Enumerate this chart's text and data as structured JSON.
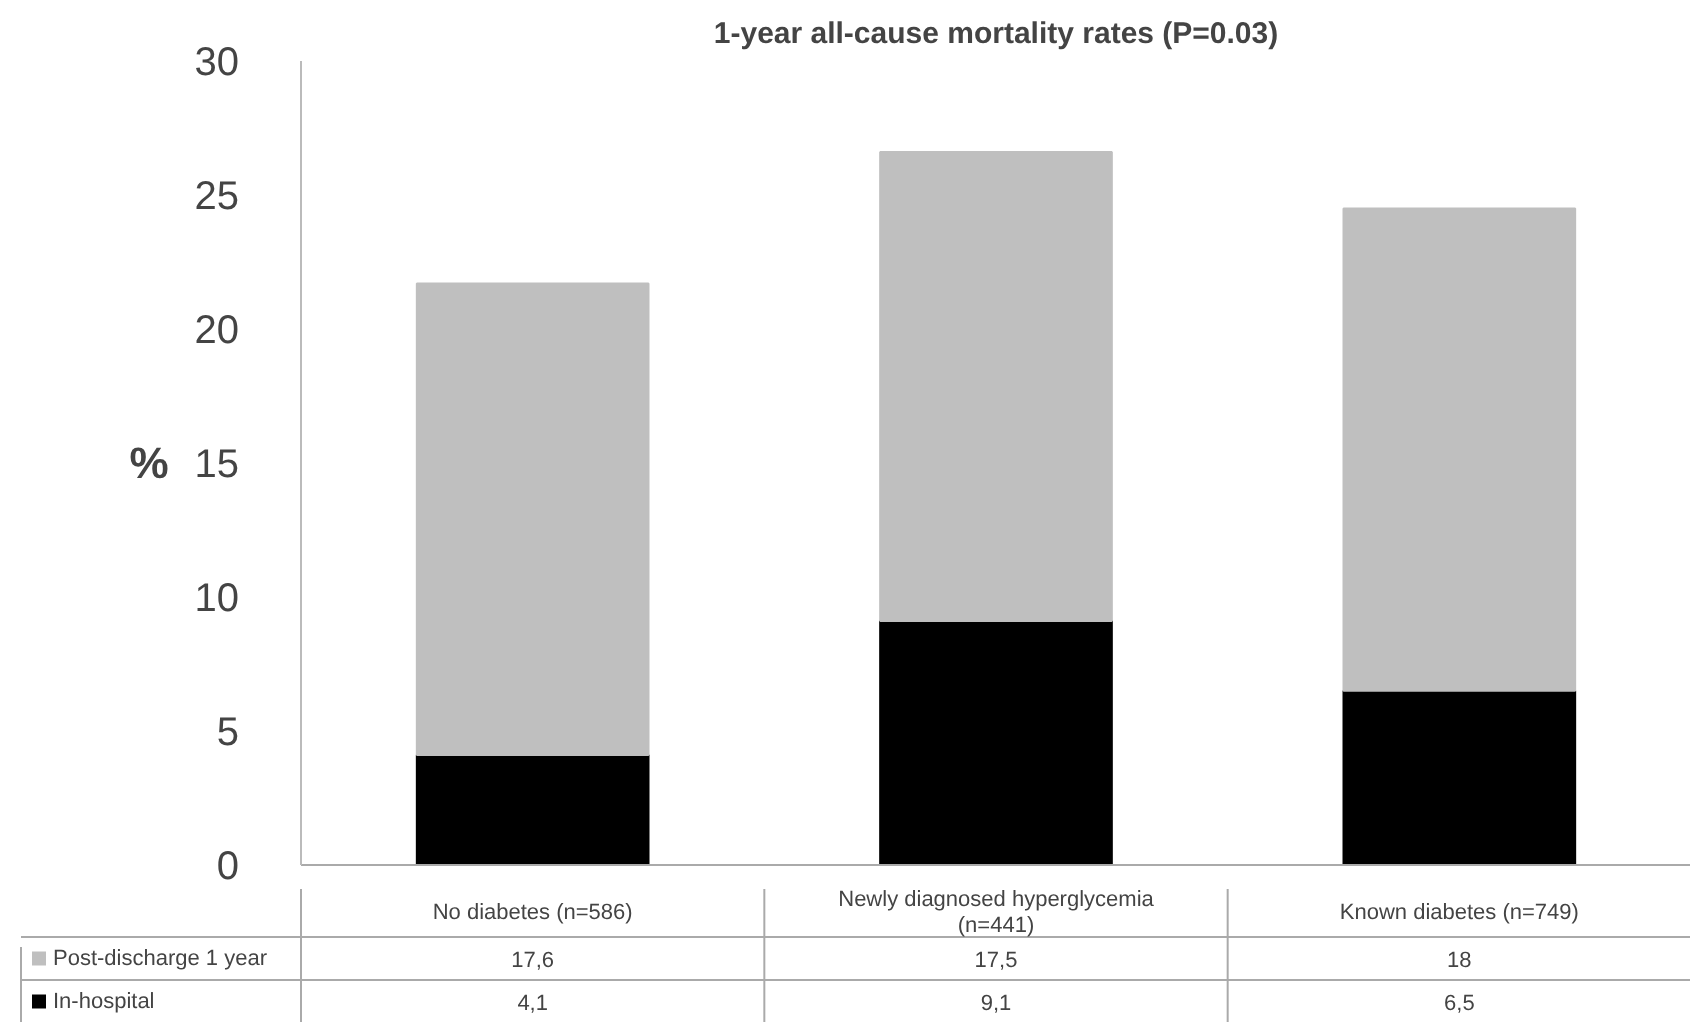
{
  "chart_data": {
    "type": "bar",
    "title": "1-year all-cause mortality rates (P=0.03)",
    "ylabel": "%",
    "categories": [
      "No diabetes (n=586)",
      "Newly diagnosed hyperglycemia (n=441)",
      "Known diabetes (n=749)"
    ],
    "stacked": true,
    "ylim": [
      0,
      30
    ],
    "yticks": [
      0,
      5,
      10,
      15,
      20,
      25,
      30
    ],
    "grid": false,
    "legend": "bottom left",
    "series": [
      {
        "name": "In-hospital",
        "color": "#000000",
        "values": [
          4.1,
          9.1,
          6.5
        ],
        "value_labels": [
          "4,1",
          "9,1",
          "6,5"
        ]
      },
      {
        "name": "Post-discharge 1 year",
        "color": "#bfbfbf",
        "values": [
          17.6,
          17.5,
          18
        ],
        "value_labels": [
          "17,6",
          "17,5",
          "18"
        ]
      }
    ]
  }
}
